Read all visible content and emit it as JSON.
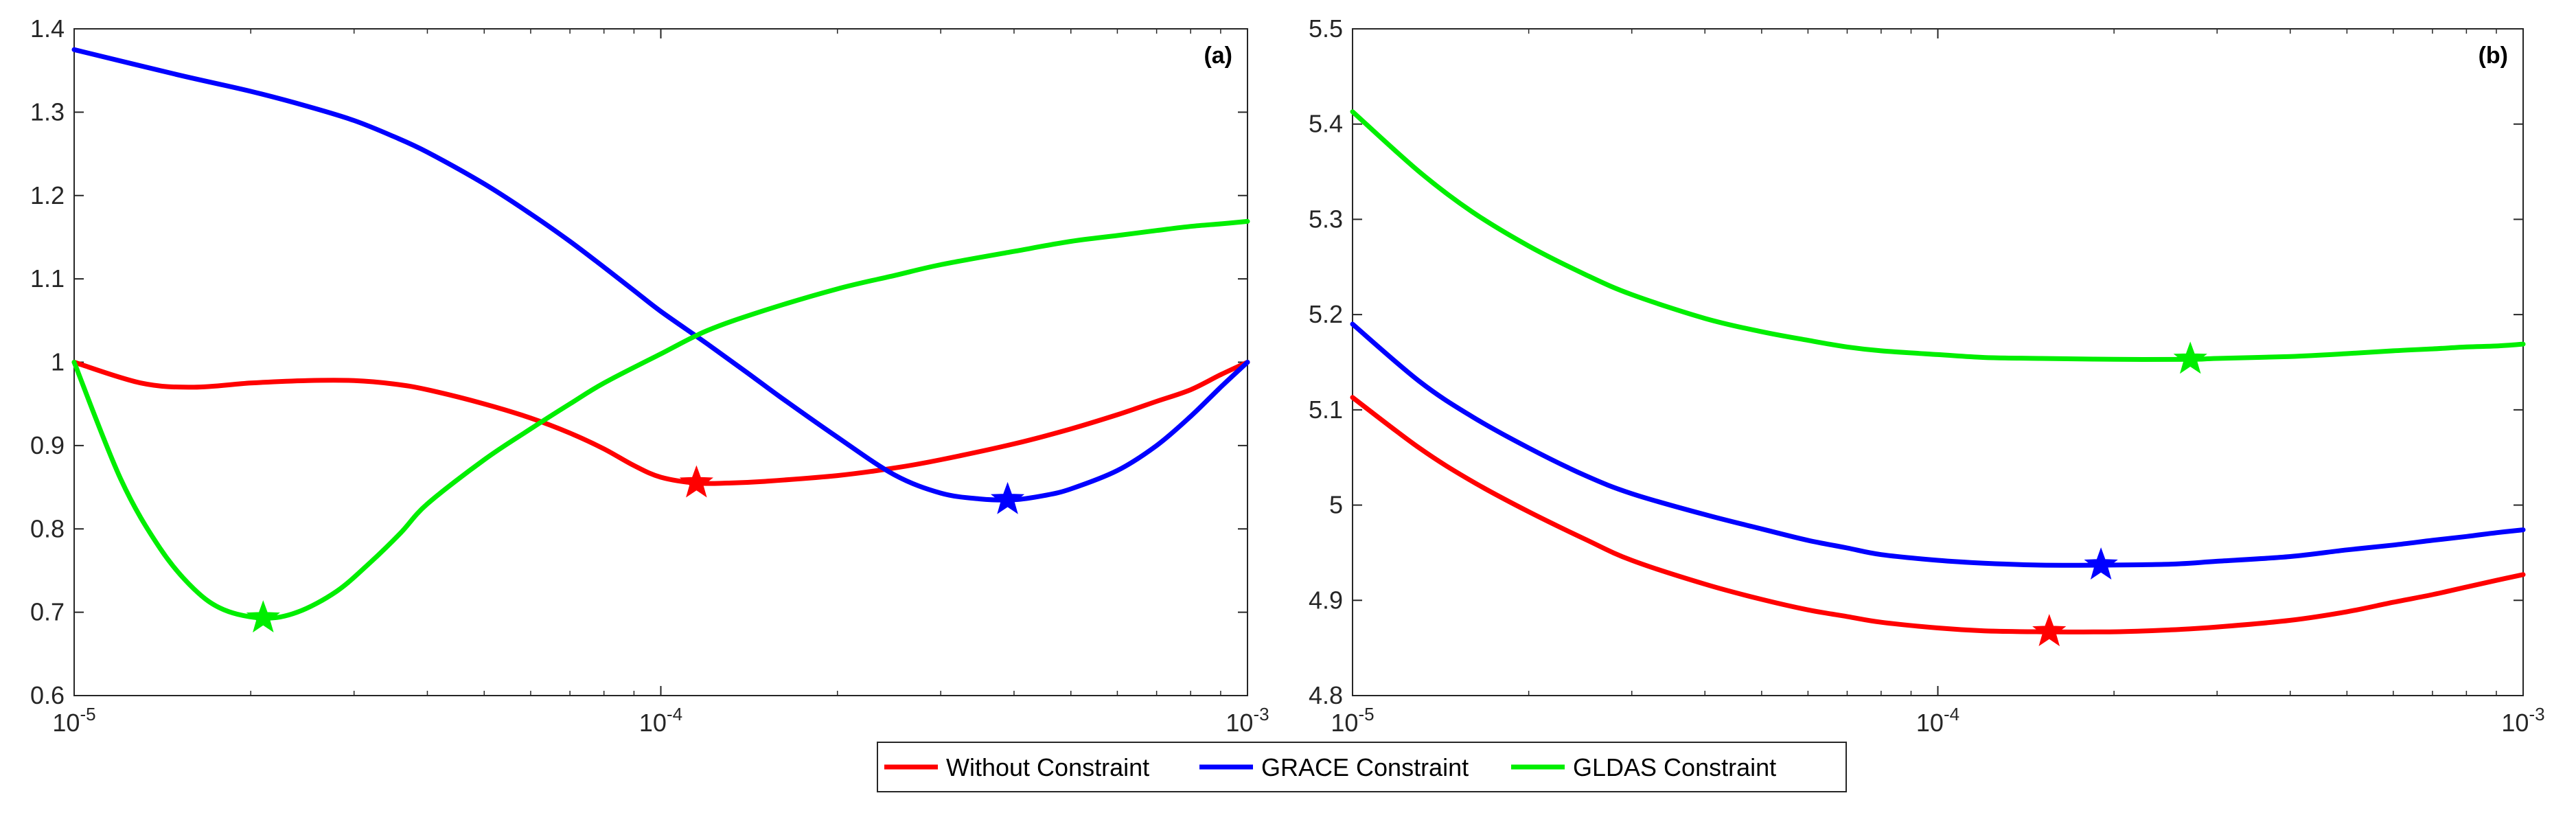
{
  "chart_data": [
    {
      "type": "line",
      "panel_label": "(a)",
      "x_scale": "log",
      "xlim": [
        1e-05,
        0.001
      ],
      "ylim": [
        0.6,
        1.4
      ],
      "x_ticks": [
        {
          "base": "10",
          "exp": "-5"
        },
        {
          "base": "10",
          "exp": "-4"
        },
        {
          "base": "10",
          "exp": "-3"
        }
      ],
      "y_ticks": [
        "0.6",
        "0.7",
        "0.8",
        "0.9",
        "1",
        "1.1",
        "1.2",
        "1.3",
        "1.4"
      ],
      "series": [
        {
          "name": "Without Constraint",
          "color": "#ff0000",
          "x": [
            1e-05,
            1.3e-05,
            1.6e-05,
            2e-05,
            2.5e-05,
            3e-05,
            3.5e-05,
            4e-05,
            5e-05,
            6e-05,
            7e-05,
            8e-05,
            9e-05,
            0.0001,
            0.000115,
            0.00013,
            0.00015,
            0.0002,
            0.00025,
            0.0003,
            0.0004,
            0.0005,
            0.0006,
            0.0007,
            0.0008,
            0.0009,
            0.001
          ],
          "y": [
            1.0,
            0.975,
            0.97,
            0.975,
            0.978,
            0.978,
            0.974,
            0.967,
            0.95,
            0.933,
            0.915,
            0.896,
            0.876,
            0.862,
            0.855,
            0.855,
            0.857,
            0.864,
            0.873,
            0.883,
            0.902,
            0.92,
            0.937,
            0.953,
            0.967,
            0.985,
            1.0
          ],
          "optimum": {
            "x": 0.000115,
            "y": 0.855
          }
        },
        {
          "name": "GRACE Constraint",
          "color": "#0000ff",
          "x": [
            1e-05,
            1.5e-05,
            2e-05,
            2.5e-05,
            3e-05,
            3.5e-05,
            4e-05,
            5e-05,
            6e-05,
            7e-05,
            8e-05,
            9e-05,
            0.0001,
            0.00012,
            0.00014,
            0.00016,
            0.0002,
            0.00025,
            0.0003,
            0.00035,
            0.0004,
            0.00045,
            0.0005,
            0.0006,
            0.0007,
            0.0008,
            0.0009,
            0.001
          ],
          "y": [
            1.375,
            1.345,
            1.325,
            1.307,
            1.29,
            1.271,
            1.252,
            1.214,
            1.178,
            1.145,
            1.114,
            1.086,
            1.061,
            1.022,
            0.988,
            0.958,
            0.91,
            0.865,
            0.843,
            0.836,
            0.835,
            0.84,
            0.848,
            0.87,
            0.9,
            0.935,
            0.97,
            1.0
          ],
          "optimum": {
            "x": 0.00039,
            "y": 0.835
          }
        },
        {
          "name": "GLDAS Constraint",
          "color": "#00ee00",
          "x": [
            1e-05,
            1.2e-05,
            1.4e-05,
            1.6e-05,
            1.8e-05,
            2.1e-05,
            2.4e-05,
            2.8e-05,
            3.2e-05,
            3.6e-05,
            4e-05,
            5e-05,
            6e-05,
            7e-05,
            8e-05,
            0.0001,
            0.00012,
            0.00015,
            0.0002,
            0.00025,
            0.0003,
            0.0004,
            0.0005,
            0.0006,
            0.0007,
            0.0008,
            0.0009,
            0.001
          ],
          "y": [
            1.0,
            0.86,
            0.777,
            0.728,
            0.703,
            0.693,
            0.7,
            0.725,
            0.76,
            0.795,
            0.83,
            0.883,
            0.92,
            0.95,
            0.975,
            1.01,
            1.038,
            1.062,
            1.088,
            1.104,
            1.117,
            1.133,
            1.145,
            1.152,
            1.158,
            1.163,
            1.166,
            1.169
          ],
          "optimum": {
            "x": 2.1e-05,
            "y": 0.693
          }
        }
      ]
    },
    {
      "type": "line",
      "panel_label": "(b)",
      "x_scale": "log",
      "xlim": [
        1e-05,
        0.001
      ],
      "ylim": [
        4.8,
        5.5
      ],
      "x_ticks": [
        {
          "base": "10",
          "exp": "-5"
        },
        {
          "base": "10",
          "exp": "-4"
        },
        {
          "base": "10",
          "exp": "-3"
        }
      ],
      "y_ticks": [
        "4.8",
        "4.9",
        "5",
        "5.1",
        "5.2",
        "5.3",
        "5.4",
        "5.5"
      ],
      "series": [
        {
          "name": "Without Constraint",
          "color": "#ff0000",
          "x": [
            1e-05,
            1.3e-05,
            1.6e-05,
            2e-05,
            2.5e-05,
            3e-05,
            4e-05,
            5e-05,
            6e-05,
            7e-05,
            8e-05,
            0.0001,
            0.00012,
            0.00015,
            0.0002,
            0.00025,
            0.0003,
            0.0004,
            0.0005,
            0.0006,
            0.0007,
            0.0008,
            0.0009,
            0.001
          ],
          "y": [
            5.113,
            5.06,
            5.025,
            4.993,
            4.964,
            4.942,
            4.917,
            4.901,
            4.89,
            4.883,
            4.877,
            4.871,
            4.868,
            4.867,
            4.867,
            4.869,
            4.872,
            4.879,
            4.888,
            4.898,
            4.906,
            4.914,
            4.921,
            4.927
          ],
          "optimum": {
            "x": 0.000155,
            "y": 4.867
          }
        },
        {
          "name": "GRACE Constraint",
          "color": "#0000ff",
          "x": [
            1e-05,
            1.3e-05,
            1.6e-05,
            2e-05,
            2.5e-05,
            3e-05,
            4e-05,
            5e-05,
            6e-05,
            7e-05,
            8e-05,
            0.0001,
            0.00012,
            0.00015,
            0.00019,
            0.00025,
            0.0003,
            0.0004,
            0.0005,
            0.0006,
            0.0007,
            0.0008,
            0.0009,
            0.001
          ],
          "y": [
            5.19,
            5.13,
            5.093,
            5.06,
            5.031,
            5.012,
            4.99,
            4.975,
            4.963,
            4.955,
            4.948,
            4.942,
            4.939,
            4.937,
            4.937,
            4.938,
            4.941,
            4.946,
            4.953,
            4.958,
            4.963,
            4.967,
            4.971,
            4.974
          ],
          "optimum": {
            "x": 0.00019,
            "y": 4.937
          }
        },
        {
          "name": "GLDAS Constraint",
          "color": "#00ee00",
          "x": [
            1e-05,
            1.3e-05,
            1.6e-05,
            2e-05,
            2.5e-05,
            3e-05,
            4e-05,
            5e-05,
            6e-05,
            7e-05,
            8e-05,
            0.0001,
            0.00012,
            0.00015,
            0.0002,
            0.00027,
            0.0003,
            0.0004,
            0.0005,
            0.0006,
            0.0007,
            0.0008,
            0.0009,
            0.001
          ],
          "y": [
            5.413,
            5.35,
            5.308,
            5.272,
            5.242,
            5.221,
            5.196,
            5.182,
            5.173,
            5.166,
            5.162,
            5.158,
            5.155,
            5.154,
            5.153,
            5.153,
            5.154,
            5.156,
            5.159,
            5.162,
            5.164,
            5.166,
            5.167,
            5.169
          ],
          "optimum": {
            "x": 0.00027,
            "y": 5.153
          }
        }
      ]
    }
  ],
  "legend": [
    {
      "label": "Without Constraint",
      "color": "#ff0000"
    },
    {
      "label": "GRACE Constraint",
      "color": "#0000ff"
    },
    {
      "label": "GLDAS Constraint",
      "color": "#00ee00"
    }
  ]
}
